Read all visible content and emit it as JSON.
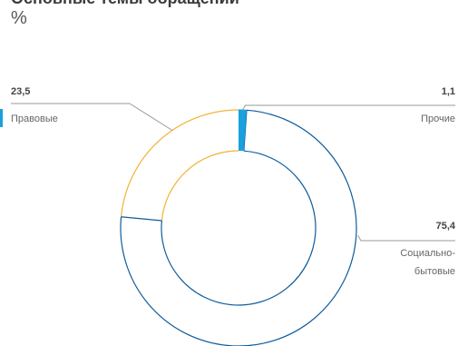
{
  "chart_data": {
    "type": "pie",
    "variant": "donut",
    "title": "Основные темы обращений",
    "unit": "%",
    "slices": [
      {
        "label": "Прочие",
        "value": 1.1,
        "value_text": "1,1",
        "color": "#1aa0dc"
      },
      {
        "label": "Социально-бытовые",
        "label_lines": [
          "Социально-",
          "бытовые"
        ],
        "value": 75.4,
        "value_text": "75,4",
        "color": "#0d5c9c"
      },
      {
        "label": "Правовые",
        "value": 23.5,
        "value_text": "23,5",
        "color": "#f2b233"
      }
    ],
    "legend_marker_color": "#1aa0dc"
  }
}
